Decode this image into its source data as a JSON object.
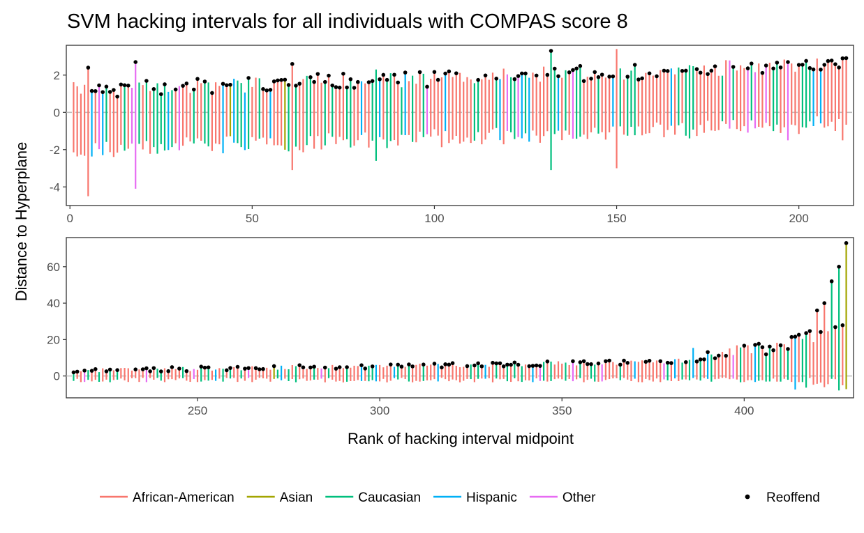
{
  "chart_data": {
    "type": "interval",
    "title": "SVM hacking intervals for all individuals with COMPAS score 8",
    "xlabel": "Rank of hacking interval midpoint",
    "ylabel": "Distance to Hyperplane",
    "grid": false,
    "legend_position": "bottom",
    "reference_line_y": 0,
    "colors": {
      "African-American": "#F8766D",
      "Asian": "#A3A500",
      "Caucasian": "#00BF7D",
      "Hispanic": "#00B0F6",
      "Other": "#E76BF3",
      "point": "#000000",
      "reference": "#BEBEBE"
    },
    "legend": {
      "race_entries": [
        "African-American",
        "Asian",
        "Caucasian",
        "Hispanic",
        "Other"
      ],
      "point_entry": "Reoffend"
    },
    "panels": [
      {
        "name": "panel-top",
        "xlim": [
          -1,
          215
        ],
        "ylim": [
          -5,
          3.6
        ],
        "xticks": [
          0,
          50,
          100,
          150,
          200
        ],
        "yticks": [
          -4,
          -2,
          0,
          2
        ],
        "rank_start": 1,
        "rank_end": 213,
        "notable_intervals": [
          {
            "rank": 5,
            "low": -4.5,
            "high": 2.4,
            "race": "African-American",
            "reoffend": true
          },
          {
            "rank": 18,
            "low": -4.1,
            "high": 2.7,
            "race": "Other",
            "reoffend": true
          },
          {
            "rank": 61,
            "low": -3.1,
            "high": 2.6,
            "race": "African-American",
            "reoffend": true
          },
          {
            "rank": 84,
            "low": -2.6,
            "high": 2.3,
            "race": "Caucasian",
            "reoffend": false
          },
          {
            "rank": 132,
            "low": -3.1,
            "high": 3.3,
            "race": "Caucasian",
            "reoffend": true
          },
          {
            "rank": 150,
            "low": -3.0,
            "high": 3.4,
            "race": "African-American",
            "reoffend": false
          },
          {
            "rank": 197,
            "low": -1.5,
            "high": 2.7,
            "race": "Other",
            "reoffend": true
          },
          {
            "rank": 212,
            "low": -1.5,
            "high": 2.9,
            "race": "African-American",
            "reoffend": true
          }
        ]
      },
      {
        "name": "panel-bottom",
        "xlim": [
          214,
          430
        ],
        "ylim": [
          -12,
          76
        ],
        "xticks": [
          250,
          300,
          350,
          400
        ],
        "yticks": [
          0,
          20,
          40,
          60
        ],
        "rank_start": 216,
        "rank_end": 428,
        "top_points": [
          {
            "rank": 420,
            "value": 36
          },
          {
            "rank": 422,
            "value": 40
          },
          {
            "rank": 424,
            "value": 52
          },
          {
            "rank": 426,
            "value": 60
          },
          {
            "rank": 428,
            "value": 73
          }
        ]
      }
    ]
  }
}
